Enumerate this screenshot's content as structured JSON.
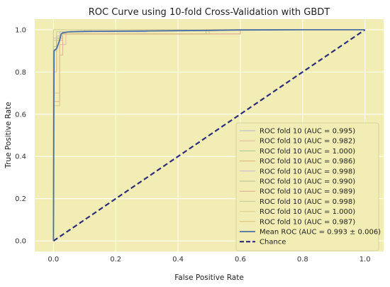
{
  "chart_data": {
    "type": "line",
    "title": "ROC Curve using 10-fold Cross-Validation with GBDT",
    "xlabel": "False Positive Rate",
    "ylabel": "True Positive Rate",
    "xlim": [
      -0.06,
      1.06
    ],
    "ylim": [
      -0.05,
      1.05
    ],
    "xticks": [
      "0.0",
      "0.2",
      "0.4",
      "0.6",
      "0.8",
      "1.0"
    ],
    "yticks": [
      "0.0",
      "0.2",
      "0.4",
      "0.6",
      "0.8",
      "1.0"
    ],
    "grid": true,
    "legend_position": "lower-right",
    "colors": {
      "background": "#f2edb5",
      "grid": "#ffffff",
      "mean": "#4a6fa5",
      "chance": "#2b2d7a"
    },
    "series": [
      {
        "name": "ROC fold 10 (AUC = 0.995)",
        "color": "#b8b8cf",
        "x": [
          0,
          0,
          0.01,
          0.01,
          0.03,
          0.03,
          0.3,
          0.3,
          1
        ],
        "y": [
          0,
          0.9,
          0.9,
          0.97,
          0.97,
          0.99,
          0.99,
          1,
          1
        ]
      },
      {
        "name": "ROC fold 10 (AUC = 0.982)",
        "color": "#e2b4a9",
        "x": [
          0,
          0,
          0.02,
          0.02,
          0.04,
          0.04,
          0.6,
          0.6,
          1
        ],
        "y": [
          0,
          0.7,
          0.7,
          0.93,
          0.93,
          0.98,
          0.98,
          1,
          1
        ]
      },
      {
        "name": "ROC fold 10 (AUC = 1.000)",
        "color": "#a8c8a0",
        "x": [
          0,
          0,
          1
        ],
        "y": [
          0,
          1,
          1
        ]
      },
      {
        "name": "ROC fold 10 (AUC = 0.986)",
        "color": "#d9b37a",
        "x": [
          0,
          0,
          0.01,
          0.01,
          0.03,
          0.03,
          0.5,
          0.5,
          1
        ],
        "y": [
          0,
          0.8,
          0.8,
          0.95,
          0.95,
          0.98,
          0.98,
          1,
          1
        ]
      },
      {
        "name": "ROC fold 10 (AUC = 0.998)",
        "color": "#c6b4d6",
        "x": [
          0,
          0,
          0.02,
          0.02,
          0.12,
          0.12,
          1
        ],
        "y": [
          0,
          0.96,
          0.96,
          0.99,
          0.99,
          1,
          1
        ]
      },
      {
        "name": "ROC fold 10 (AUC = 0.990)",
        "color": "#b3bf8c",
        "x": [
          0,
          0,
          0.01,
          0.01,
          0.03,
          0.03,
          0.49,
          0.49,
          1
        ],
        "y": [
          0,
          0.92,
          0.92,
          0.96,
          0.96,
          0.98,
          0.98,
          1,
          1
        ]
      },
      {
        "name": "ROC fold 10 (AUC = 0.989)",
        "color": "#e0a890",
        "x": [
          0,
          0,
          0.02,
          0.02,
          0.03,
          0.03,
          0.6,
          0.6,
          1
        ],
        "y": [
          0,
          0.66,
          0.66,
          0.88,
          0.88,
          0.98,
          0.98,
          1,
          1
        ]
      },
      {
        "name": "ROC fold 10 (AUC = 0.998)",
        "color": "#c0c89a",
        "x": [
          0,
          0,
          0.01,
          0.01,
          0.1,
          0.1,
          1
        ],
        "y": [
          0,
          0.95,
          0.95,
          0.99,
          0.99,
          1,
          1
        ]
      },
      {
        "name": "ROC fold 10 (AUC = 1.000)",
        "color": "#d8cf8a",
        "x": [
          0,
          0,
          1
        ],
        "y": [
          0,
          1,
          1
        ]
      },
      {
        "name": "ROC fold 10 (AUC = 0.987)",
        "color": "#d8c07a",
        "x": [
          0,
          0,
          0.02,
          0.02,
          0.03,
          0.03,
          0.5,
          0.5,
          1
        ],
        "y": [
          0,
          0.64,
          0.64,
          0.97,
          0.97,
          0.98,
          0.98,
          1,
          1
        ]
      }
    ],
    "mean": {
      "name": "Mean ROC (AUC = 0.993 ± 0.006)",
      "x": [
        0,
        0.002,
        0.005,
        0.01,
        0.02,
        0.025,
        0.03,
        0.05,
        0.1,
        0.2,
        0.3,
        0.5,
        0.6,
        0.8,
        1
      ],
      "y": [
        0,
        0.9,
        0.905,
        0.91,
        0.95,
        0.98,
        0.985,
        0.99,
        0.992,
        0.993,
        0.994,
        0.997,
        0.999,
        1,
        1
      ]
    },
    "chance": {
      "name": "Chance",
      "x": [
        0,
        1
      ],
      "y": [
        0,
        1
      ]
    }
  }
}
